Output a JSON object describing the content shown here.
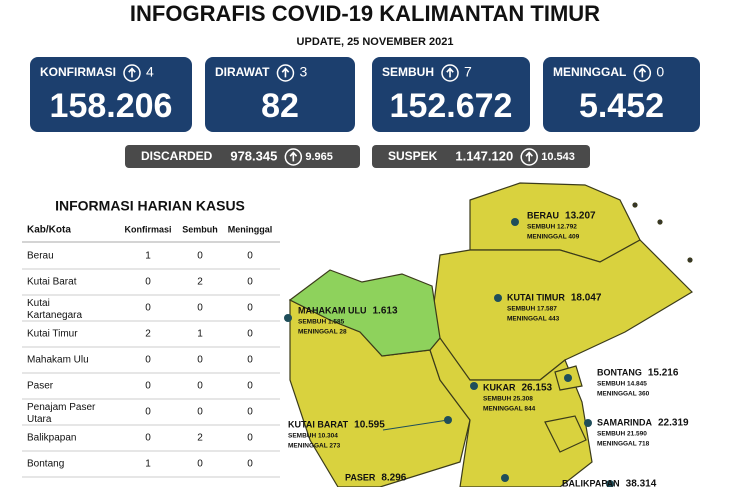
{
  "header": {
    "title": "INFOGRAFIS COVID-19 KALIMANTAN TIMUR",
    "update": "UPDATE, 25 NOVEMBER 2021"
  },
  "stats": [
    {
      "label": "KONFIRMASI",
      "delta": "4",
      "value": "158.206"
    },
    {
      "label": "DIRAWAT",
      "delta": "3",
      "value": "82"
    },
    {
      "label": "SEMBUH",
      "delta": "7",
      "value": "152.672"
    },
    {
      "label": "MENINGGAL",
      "delta": "0",
      "value": "5.452"
    }
  ],
  "secondary": [
    {
      "label": "DISCARDED",
      "value": "978.345",
      "delta": "9.965"
    },
    {
      "label": "SUSPEK",
      "value": "1.147.120",
      "delta": "10.543"
    }
  ],
  "table": {
    "title": "INFORMASI HARIAN KASUS",
    "headers": [
      "Kab/Kota",
      "Konfirmasi",
      "Sembuh",
      "Meninggal"
    ],
    "rows": [
      [
        "Berau",
        "1",
        "0",
        "0"
      ],
      [
        "Kutai Barat",
        "0",
        "2",
        "0"
      ],
      [
        "Kutai Kartanegara",
        "0",
        "0",
        "0"
      ],
      [
        "Kutai Timur",
        "2",
        "1",
        "0"
      ],
      [
        "Mahakam Ulu",
        "0",
        "0",
        "0"
      ],
      [
        "Paser",
        "0",
        "0",
        "0"
      ],
      [
        "Penajam Paser Utara",
        "0",
        "0",
        "0"
      ],
      [
        "Balikpapan",
        "0",
        "2",
        "0"
      ],
      [
        "Bontang",
        "1",
        "0",
        "0"
      ]
    ]
  },
  "map": {
    "regions": [
      {
        "name": "BERAU",
        "total": "13.207",
        "sembuh": "SEMBUH 12.792",
        "meninggal": "MENINGGAL 409"
      },
      {
        "name": "MAHAKAM ULU",
        "total": "1.613",
        "sembuh": "SEMBUH 1.585",
        "meninggal": "MENINGGAL 28"
      },
      {
        "name": "KUTAI TIMUR",
        "total": "18.047",
        "sembuh": "SEMBUH 17.587",
        "meninggal": "MENINGGAL 443"
      },
      {
        "name": "BONTANG",
        "total": "15.216",
        "sembuh": "SEMBUH 14.845",
        "meninggal": "MENINGGAL 360"
      },
      {
        "name": "KUKAR",
        "total": "26.153",
        "sembuh": "SEMBUH 25.308",
        "meninggal": "MENINGGAL 844"
      },
      {
        "name": "SAMARINDA",
        "total": "22.319",
        "sembuh": "SEMBUH 21.590",
        "meninggal": "MENINGGAL 718"
      },
      {
        "name": "KUTAI BARAT",
        "total": "10.595",
        "sembuh": "SEMBUH 10.304",
        "meninggal": "MENINGGAL 273"
      },
      {
        "name": "PASER",
        "total": "8.296"
      },
      {
        "name": "BALIKPAPAN",
        "total": "38.314"
      }
    ]
  }
}
